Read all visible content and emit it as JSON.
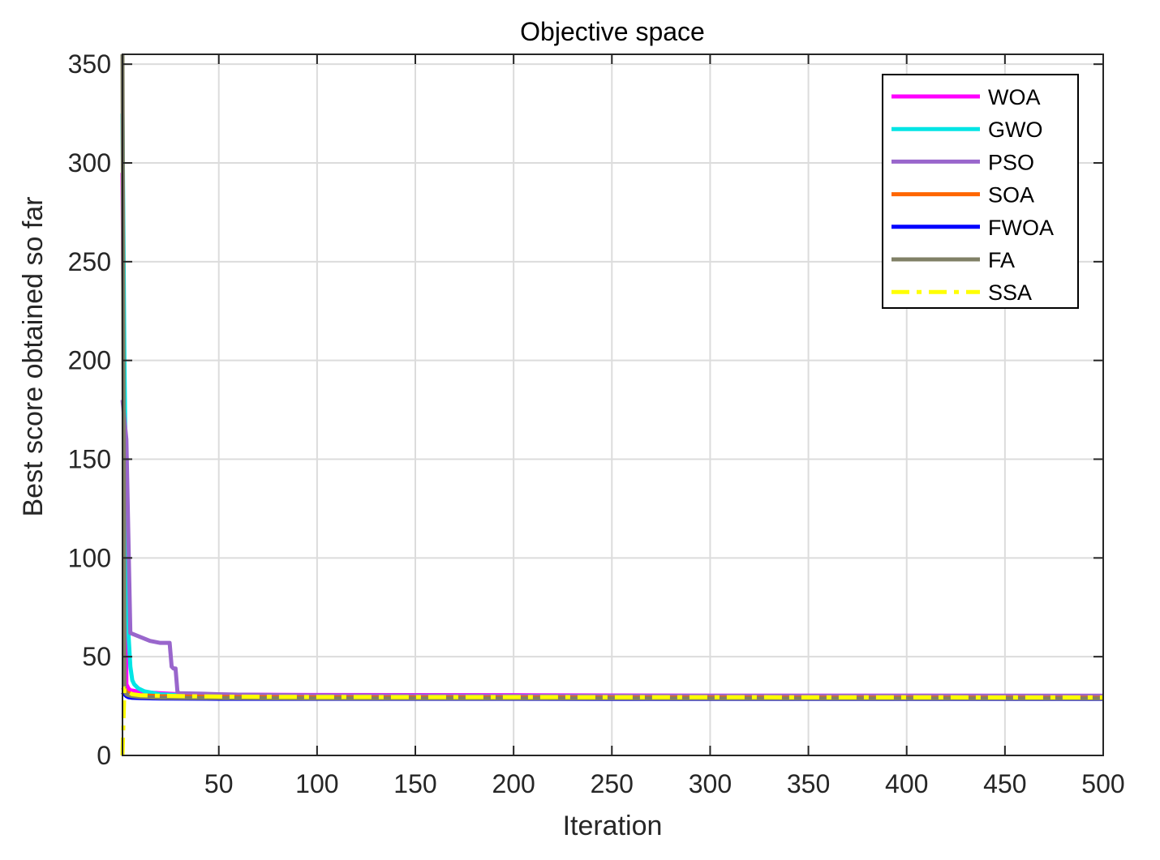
{
  "chart_data": {
    "type": "line",
    "title": "Objective space",
    "xlabel": "Iteration",
    "ylabel": "Best score obtained so far",
    "xlim": [
      1,
      500
    ],
    "ylim": [
      0,
      355
    ],
    "xticks": [
      50,
      100,
      150,
      200,
      250,
      300,
      350,
      400,
      450,
      500
    ],
    "yticks": [
      0,
      50,
      100,
      150,
      200,
      250,
      300,
      350
    ],
    "grid": true,
    "legend_position": "top-right",
    "series": [
      {
        "name": "WOA",
        "color": "#ff00ff",
        "style": "solid",
        "x": [
          1,
          2,
          3,
          4,
          5,
          8,
          12,
          20,
          30,
          60,
          100,
          210,
          300,
          500
        ],
        "y": [
          295,
          155,
          36,
          34,
          33,
          32.5,
          32,
          31.5,
          31,
          30.8,
          30.6,
          30.5,
          30.3,
          30.2
        ]
      },
      {
        "name": "GWO",
        "color": "#00e5e5",
        "style": "solid",
        "x": [
          1,
          2,
          3,
          4,
          5,
          6,
          7,
          9,
          12,
          20,
          40,
          100,
          500
        ],
        "y": [
          325,
          200,
          120,
          62,
          45,
          38,
          36,
          34,
          32.5,
          31,
          30.2,
          29.8,
          29.5
        ]
      },
      {
        "name": "PSO",
        "color": "#9966cc",
        "style": "solid",
        "x": [
          1,
          2,
          3,
          4,
          5,
          10,
          15,
          20,
          25,
          26,
          27,
          28,
          29,
          30,
          40,
          50,
          60,
          100,
          200,
          500
        ],
        "y": [
          180,
          170,
          160,
          110,
          62,
          60,
          58,
          57,
          57,
          45,
          44,
          44,
          32,
          31.5,
          31.3,
          31,
          30.8,
          30.4,
          30.2,
          30.2
        ]
      },
      {
        "name": "SOA",
        "color": "#ff6600",
        "style": "solid",
        "x": [
          1,
          2,
          3,
          4,
          6,
          10,
          20,
          50,
          100,
          500
        ],
        "y": [
          33,
          34,
          32,
          31.5,
          31,
          30.5,
          30,
          29.6,
          29.4,
          29.2
        ]
      },
      {
        "name": "FWOA",
        "color": "#0000ff",
        "style": "solid",
        "x": [
          1,
          2,
          3,
          4,
          6,
          10,
          20,
          50,
          500
        ],
        "y": [
          32,
          31,
          30,
          29.5,
          29.2,
          29,
          28.8,
          28.7,
          28.6
        ]
      },
      {
        "name": "FA",
        "color": "#808066",
        "style": "solid",
        "x": [
          1,
          2,
          3,
          4,
          6,
          10,
          20,
          50,
          100,
          500
        ],
        "y": [
          355,
          33,
          31,
          30.5,
          30,
          29.6,
          29.2,
          29,
          28.9,
          28.8
        ]
      },
      {
        "name": "SSA",
        "color": "#ffff00",
        "style": "dashdot",
        "x": [
          1,
          2,
          3,
          4,
          6,
          10,
          20,
          50,
          100,
          500
        ],
        "y": [
          0,
          34,
          33,
          32,
          31,
          30.5,
          30.2,
          29.8,
          29.6,
          29.4
        ]
      }
    ]
  }
}
